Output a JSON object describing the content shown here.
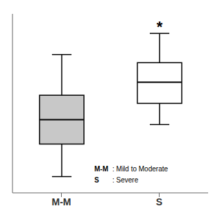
{
  "chart_data": {
    "type": "box",
    "categories": [
      "M-M",
      "S"
    ],
    "boxes": [
      {
        "q1": 3.0,
        "median": 4.5,
        "q3": 6.0,
        "whisker_low": 1.0,
        "whisker_high": 8.5
      },
      {
        "q1": 5.5,
        "median": 6.8,
        "q3": 8.0,
        "whisker_low": 4.2,
        "whisker_high": 9.8
      }
    ],
    "colors": [
      "#c8c8c8",
      "#ffffff"
    ],
    "ylim": [
      0.0,
      11.0
    ],
    "yticks": [],
    "tick_labels": "x",
    "grid": false,
    "annotations": [
      {
        "text": "*",
        "category": "S"
      }
    ],
    "key": [
      {
        "label": "M-M",
        "text": ": Mild to Moderate"
      },
      {
        "label": "S",
        "text": ": Severe"
      }
    ]
  }
}
